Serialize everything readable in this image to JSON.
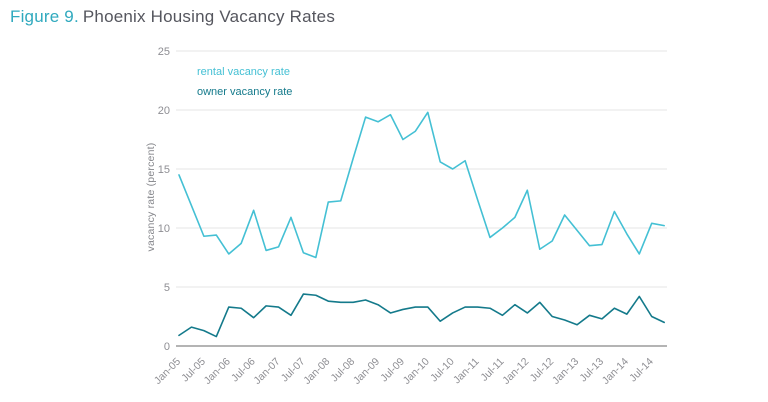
{
  "figure": {
    "label": "Figure 9.",
    "title": "Phoenix Housing Vacancy Rates"
  },
  "colors": {
    "title_accent": "#2fa9be",
    "title_text": "#55565e",
    "gridline": "#e6e6e6",
    "axis_line": "#9b9b9b",
    "tick_label": "#8e8e93",
    "axis_title": "#85868b",
    "rental_line": "#44c0d4",
    "owner_line": "#147a8b"
  },
  "chart_data": {
    "type": "line",
    "title": "Phoenix Housing Vacancy Rates",
    "xlabel": "",
    "ylabel": "vacancy rate (percent)",
    "ylim": [
      0,
      25
    ],
    "yticks": [
      0,
      5,
      10,
      15,
      20,
      25
    ],
    "grid": "horizontal",
    "legend_position": "top-left-inside",
    "x": [
      "Jan-05",
      "Apr-05",
      "Jul-05",
      "Oct-05",
      "Jan-06",
      "Apr-06",
      "Jul-06",
      "Oct-06",
      "Jan-07",
      "Apr-07",
      "Jul-07",
      "Oct-07",
      "Jan-08",
      "Apr-08",
      "Jul-08",
      "Oct-08",
      "Jan-09",
      "Apr-09",
      "Jul-09",
      "Oct-09",
      "Jan-10",
      "Apr-10",
      "Jul-10",
      "Oct-10",
      "Jan-11",
      "Apr-11",
      "Jul-11",
      "Oct-11",
      "Jan-12",
      "Apr-12",
      "Jul-12",
      "Oct-12",
      "Jan-13",
      "Apr-13",
      "Jul-13",
      "Oct-13",
      "Jan-14",
      "Apr-14",
      "Jul-14",
      "Oct-14"
    ],
    "x_tick_labels": [
      "Jan-05",
      "Jul-05",
      "Jan-06",
      "Jul-06",
      "Jan-07",
      "Jul-07",
      "Jan-08",
      "Jul-08",
      "Jan-09",
      "Jul-09",
      "Jan-10",
      "Jul-10",
      "Jan-11",
      "Jul-11",
      "Jan-12",
      "Jul-12",
      "Jan-13",
      "Jul-13",
      "Jan-14",
      "Jul-14"
    ],
    "series": [
      {
        "id": "rental-vacancy-rate",
        "name": "rental vacancy rate",
        "color": "#44c0d4",
        "values": [
          14.5,
          11.9,
          9.3,
          9.4,
          7.8,
          8.7,
          11.5,
          8.1,
          8.4,
          10.9,
          7.9,
          7.5,
          12.2,
          12.3,
          15.9,
          19.4,
          19.0,
          19.6,
          17.5,
          18.2,
          19.8,
          15.6,
          15.0,
          15.7,
          12.4,
          9.2,
          10.0,
          10.9,
          13.2,
          8.2,
          8.9,
          11.1,
          9.8,
          8.5,
          8.6,
          11.4,
          9.5,
          7.8,
          10.4,
          10.2
        ]
      },
      {
        "id": "owner-vacancy-rate",
        "name": "owner vacancy rate",
        "color": "#147a8b",
        "values": [
          0.9,
          1.6,
          1.3,
          0.8,
          3.3,
          3.2,
          2.4,
          3.4,
          3.3,
          2.6,
          4.4,
          4.3,
          3.8,
          3.7,
          3.7,
          3.9,
          3.5,
          2.8,
          3.1,
          3.3,
          3.3,
          2.1,
          2.8,
          3.3,
          3.3,
          3.2,
          2.6,
          3.5,
          2.8,
          3.7,
          2.5,
          2.2,
          1.8,
          2.6,
          2.3,
          3.2,
          2.7,
          4.2,
          2.5,
          2.0
        ]
      }
    ]
  }
}
